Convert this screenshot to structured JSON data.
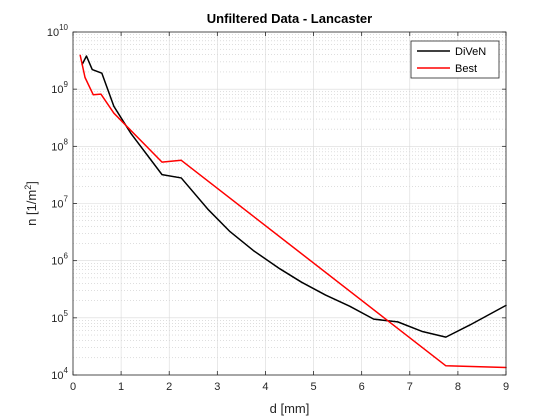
{
  "chart_data": {
    "type": "line",
    "title": "Unfiltered Data - Lancaster",
    "xlabel": "d [mm]",
    "ylabel": "n [1/m^2]",
    "ylabel_parts": {
      "base": "n [1/m",
      "exp": "2",
      "close": "]"
    },
    "xlim": [
      0,
      9
    ],
    "ylim": [
      10000,
      10000000000
    ],
    "yscale": "log",
    "grid": true,
    "minor_grid": true,
    "legend_position": "top-right",
    "x_ticks": [
      0,
      1,
      2,
      3,
      4,
      5,
      6,
      7,
      8,
      9
    ],
    "y_ticks": [
      {
        "value": 10000,
        "base": "10",
        "exp": "4"
      },
      {
        "value": 100000,
        "base": "10",
        "exp": "5"
      },
      {
        "value": 1000000,
        "base": "10",
        "exp": "6"
      },
      {
        "value": 10000000,
        "base": "10",
        "exp": "7"
      },
      {
        "value": 100000000,
        "base": "10",
        "exp": "8"
      },
      {
        "value": 1000000000,
        "base": "10",
        "exp": "9"
      },
      {
        "value": 10000000000,
        "base": "10",
        "exp": "10"
      }
    ],
    "series": [
      {
        "name": "DiVeN",
        "color": "#000000",
        "points": [
          [
            0.19,
            2700000000
          ],
          [
            0.28,
            3800000000
          ],
          [
            0.4,
            2200000000
          ],
          [
            0.6,
            1900000000
          ],
          [
            0.85,
            500000000
          ],
          [
            1.2,
            170000000
          ],
          [
            1.85,
            32000000
          ],
          [
            2.25,
            28000000
          ],
          [
            2.8,
            8000000
          ],
          [
            3.25,
            3300000
          ],
          [
            3.75,
            1500000
          ],
          [
            4.3,
            720000
          ],
          [
            4.75,
            420000
          ],
          [
            5.25,
            250000
          ],
          [
            5.75,
            160000
          ],
          [
            6.25,
            95000
          ],
          [
            6.75,
            85000
          ],
          [
            7.25,
            58000
          ],
          [
            7.75,
            46000
          ],
          [
            8.25,
            75000
          ],
          [
            9.0,
            165000
          ]
        ]
      },
      {
        "name": "Best",
        "color": "#ff0000",
        "points": [
          [
            0.15,
            3900000000
          ],
          [
            0.25,
            1600000000
          ],
          [
            0.42,
            800000000
          ],
          [
            0.58,
            820000000
          ],
          [
            0.85,
            380000000
          ],
          [
            1.85,
            53000000
          ],
          [
            2.25,
            57000000
          ],
          [
            7.75,
            14500.0
          ],
          [
            9.0,
            13500
          ]
        ]
      }
    ]
  }
}
